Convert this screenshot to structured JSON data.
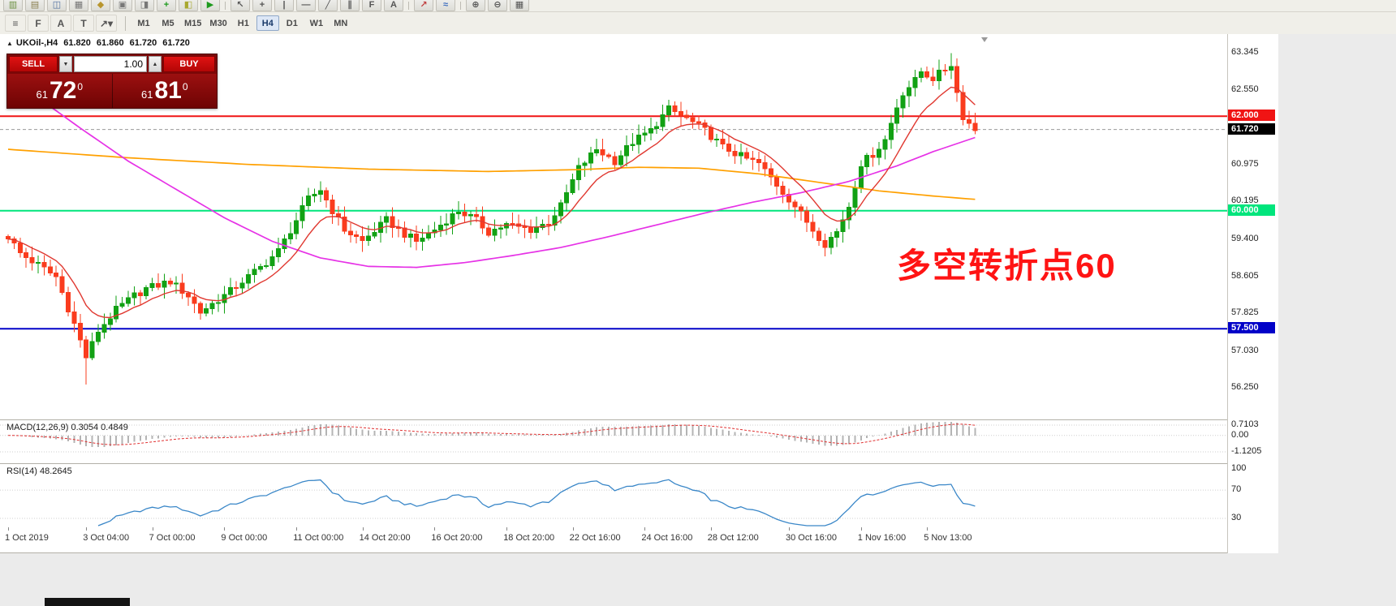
{
  "toolbar_top": {
    "icons": [
      {
        "name": "new-chart-icon",
        "glyph": "▥",
        "color": "#6a8f3f"
      },
      {
        "name": "profiles-icon",
        "glyph": "▤",
        "color": "#8a7f4f"
      },
      {
        "name": "market-watch-icon",
        "glyph": "◫",
        "color": "#4f6f9f"
      },
      {
        "name": "data-window-icon",
        "glyph": "▦",
        "color": "#777777"
      },
      {
        "name": "navigator-icon",
        "glyph": "◆",
        "color": "#b8962f"
      },
      {
        "name": "terminal-icon",
        "glyph": "▣",
        "color": "#777777"
      },
      {
        "name": "strategy-tester-icon",
        "glyph": "◨",
        "color": "#777777"
      },
      {
        "name": "new-order-icon",
        "glyph": "+",
        "color": "#1d9a1d"
      },
      {
        "name": "metaeditor-icon",
        "glyph": "◧",
        "color": "#a8a82f"
      },
      {
        "name": "autotrading-icon",
        "glyph": "▶",
        "color": "#1d9a1d"
      },
      {
        "name": "cursor-icon",
        "glyph": "↖",
        "color": "#555555"
      },
      {
        "name": "crosshair-icon",
        "glyph": "+",
        "color": "#555555"
      },
      {
        "name": "vertical-line-icon",
        "glyph": "|",
        "color": "#555555"
      },
      {
        "name": "horizontal-line-icon",
        "glyph": "—",
        "color": "#555555"
      },
      {
        "name": "trendline-icon",
        "glyph": "╱",
        "color": "#555555"
      },
      {
        "name": "equidistant-channel-icon",
        "glyph": "∥",
        "color": "#555555"
      },
      {
        "name": "fibonacci-retracement-icon",
        "glyph": "F",
        "color": "#555555"
      },
      {
        "name": "text-tool-icon",
        "glyph": "A",
        "color": "#555555"
      },
      {
        "name": "arrows-icon",
        "glyph": "↗",
        "color": "#c04040"
      },
      {
        "name": "indicators-icon",
        "glyph": "≈",
        "color": "#3f6fbf"
      },
      {
        "name": "zoom-in-icon",
        "glyph": "⊕",
        "color": "#555555"
      },
      {
        "name": "zoom-out-icon",
        "glyph": "⊖",
        "color": "#555555"
      },
      {
        "name": "tile-windows-icon",
        "glyph": "▦",
        "color": "#555555"
      }
    ]
  },
  "toolbar": {
    "tools": [
      {
        "name": "equidistant-channel-tool",
        "glyph": "≡"
      },
      {
        "name": "fibonacci-tool",
        "glyph": "F"
      },
      {
        "name": "text-tool",
        "glyph": "A"
      },
      {
        "name": "label-tool",
        "glyph": "T"
      },
      {
        "name": "shapes-dropdown-tool",
        "glyph": "↗▾"
      }
    ],
    "timeframes": [
      {
        "label": "M1",
        "active": false
      },
      {
        "label": "M5",
        "active": false
      },
      {
        "label": "M15",
        "active": false
      },
      {
        "label": "M30",
        "active": false
      },
      {
        "label": "H1",
        "active": false
      },
      {
        "label": "H4",
        "active": true
      },
      {
        "label": "D1",
        "active": false
      },
      {
        "label": "W1",
        "active": false
      },
      {
        "label": "MN",
        "active": false
      }
    ]
  },
  "symbol_info": {
    "expand_icon": "▲",
    "symbol": "UKOil-,H4",
    "open": "61.820",
    "high": "61.860",
    "low": "61.720",
    "close": "61.720"
  },
  "trade_panel": {
    "sell_label": "SELL",
    "buy_label": "BUY",
    "volume": "1.00",
    "caret_down": "▼",
    "caret_up": "▲",
    "sell": {
      "prefix": "61",
      "big": "72",
      "sup": "0"
    },
    "buy": {
      "prefix": "61",
      "big": "81",
      "sup": "0"
    }
  },
  "annotation": {
    "text": "多空转折点60",
    "color": "#ff1414"
  },
  "colors": {
    "candle_up": "#12a114",
    "candle_down": "#fa3c1e",
    "ma_orange": "#ffa000",
    "ma_magenta": "#e632e6",
    "ma_red": "#e03830",
    "hline_red": "#f01414",
    "hline_green": "#00e57c",
    "hline_blue": "#0202c8",
    "current_tag": "#000000",
    "macd_hist": "#b4b4b4",
    "macd_signal": "#e03030",
    "rsi_line": "#3a87c8"
  },
  "chart_data": {
    "type": "candlestick",
    "symbol": "UKOil-,H4",
    "price_axis_ticks": [
      "63.345",
      "62.550",
      "60.975",
      "60.195",
      "59.400",
      "58.605",
      "57.825",
      "57.030",
      "56.250"
    ],
    "hlines": [
      {
        "price": 62.0,
        "label": "62.000",
        "color_key": "hline_red"
      },
      {
        "price": 60.0,
        "label": "60.000",
        "color_key": "hline_green"
      },
      {
        "price": 57.5,
        "label": "57.500",
        "color_key": "hline_blue"
      }
    ],
    "current_price": {
      "price": 61.72,
      "label": "61.720"
    },
    "x_axis_labels": [
      {
        "i": 0,
        "label": "1 Oct 2019"
      },
      {
        "i": 13,
        "label": "3 Oct 04:00"
      },
      {
        "i": 24,
        "label": "7 Oct 00:00"
      },
      {
        "i": 36,
        "label": "9 Oct 00:00"
      },
      {
        "i": 48,
        "label": "11 Oct 00:00"
      },
      {
        "i": 59,
        "label": "14 Oct 20:00"
      },
      {
        "i": 71,
        "label": "16 Oct 20:00"
      },
      {
        "i": 83,
        "label": "18 Oct 20:00"
      },
      {
        "i": 94,
        "label": "22 Oct 16:00"
      },
      {
        "i": 106,
        "label": "24 Oct 16:00"
      },
      {
        "i": 117,
        "label": "28 Oct 12:00"
      },
      {
        "i": 130,
        "label": "30 Oct 16:00"
      },
      {
        "i": 142,
        "label": "1 Nov 16:00"
      },
      {
        "i": 153,
        "label": "5 Nov 13:00"
      }
    ],
    "candles": {
      "count": 162,
      "close_waypoints": [
        [
          0,
          59.45
        ],
        [
          2,
          59.1
        ],
        [
          5,
          58.85
        ],
        [
          8,
          58.6
        ],
        [
          11,
          57.6
        ],
        [
          13,
          56.9
        ],
        [
          15,
          57.45
        ],
        [
          18,
          57.9
        ],
        [
          21,
          58.2
        ],
        [
          23,
          58.35
        ],
        [
          27,
          58.5
        ],
        [
          30,
          58.2
        ],
        [
          32,
          57.85
        ],
        [
          36,
          58.2
        ],
        [
          39,
          58.5
        ],
        [
          43,
          58.9
        ],
        [
          45,
          59.15
        ],
        [
          48,
          59.8
        ],
        [
          50,
          60.25
        ],
        [
          52,
          60.45
        ],
        [
          54,
          60.0
        ],
        [
          56,
          59.6
        ],
        [
          59,
          59.35
        ],
        [
          63,
          59.8
        ],
        [
          66,
          59.5
        ],
        [
          68,
          59.35
        ],
        [
          71,
          59.6
        ],
        [
          75,
          60.0
        ],
        [
          78,
          59.8
        ],
        [
          80,
          59.55
        ],
        [
          83,
          59.7
        ],
        [
          87,
          59.6
        ],
        [
          90,
          59.75
        ],
        [
          92,
          60.1
        ],
        [
          95,
          60.9
        ],
        [
          98,
          61.3
        ],
        [
          101,
          61.05
        ],
        [
          104,
          61.45
        ],
        [
          107,
          61.7
        ],
        [
          110,
          62.15
        ],
        [
          113,
          61.95
        ],
        [
          116,
          61.7
        ],
        [
          119,
          61.35
        ],
        [
          122,
          61.15
        ],
        [
          125,
          61.0
        ],
        [
          128,
          60.55
        ],
        [
          131,
          60.1
        ],
        [
          134,
          59.6
        ],
        [
          136,
          59.3
        ],
        [
          138,
          59.55
        ],
        [
          140,
          60.1
        ],
        [
          142,
          61.0
        ],
        [
          144,
          61.2
        ],
        [
          146,
          61.5
        ],
        [
          148,
          62.2
        ],
        [
          149,
          62.5
        ],
        [
          151,
          62.75
        ],
        [
          152,
          62.95
        ],
        [
          154,
          62.8
        ],
        [
          156,
          63.0
        ],
        [
          157,
          63.1
        ],
        [
          158,
          62.5
        ],
        [
          159,
          62.0
        ],
        [
          160,
          61.85
        ],
        [
          161,
          61.72
        ]
      ],
      "wick_overrides": [
        {
          "i": 13,
          "low": 56.32
        },
        {
          "i": 52,
          "high": 60.62
        },
        {
          "i": 110,
          "high": 62.35
        },
        {
          "i": 136,
          "low": 59.15
        },
        {
          "i": 157,
          "high": 63.34
        }
      ]
    },
    "ma": {
      "orange_waypoints": [
        [
          0,
          61.3
        ],
        [
          20,
          61.12
        ],
        [
          40,
          60.98
        ],
        [
          60,
          60.88
        ],
        [
          80,
          60.83
        ],
        [
          95,
          60.87
        ],
        [
          105,
          60.92
        ],
        [
          115,
          60.9
        ],
        [
          125,
          60.78
        ],
        [
          135,
          60.6
        ],
        [
          145,
          60.42
        ],
        [
          155,
          60.3
        ],
        [
          161,
          60.24
        ]
      ],
      "magenta_waypoints": [
        [
          6,
          62.3
        ],
        [
          12,
          61.75
        ],
        [
          20,
          61.05
        ],
        [
          28,
          60.45
        ],
        [
          36,
          59.85
        ],
        [
          44,
          59.35
        ],
        [
          52,
          59.0
        ],
        [
          60,
          58.82
        ],
        [
          68,
          58.8
        ],
        [
          76,
          58.9
        ],
        [
          84,
          59.05
        ],
        [
          92,
          59.22
        ],
        [
          100,
          59.45
        ],
        [
          108,
          59.7
        ],
        [
          116,
          59.95
        ],
        [
          124,
          60.18
        ],
        [
          132,
          60.38
        ],
        [
          140,
          60.62
        ],
        [
          148,
          60.95
        ],
        [
          154,
          61.25
        ],
        [
          161,
          61.55
        ]
      ],
      "red_period": 10
    },
    "macd": {
      "label": "MACD(12,26,9) 0.3054 0.4849",
      "axis_ticks": [
        "0.7103",
        "0.00",
        "-1.1205"
      ],
      "tick_values": [
        0.7103,
        0,
        -1.1205
      ]
    },
    "rsi": {
      "label": "RSI(14) 48.2645",
      "axis_ticks": [
        "100",
        "70",
        "30"
      ],
      "tick_values": [
        100,
        70,
        30
      ],
      "levels": [
        70,
        30
      ]
    }
  }
}
